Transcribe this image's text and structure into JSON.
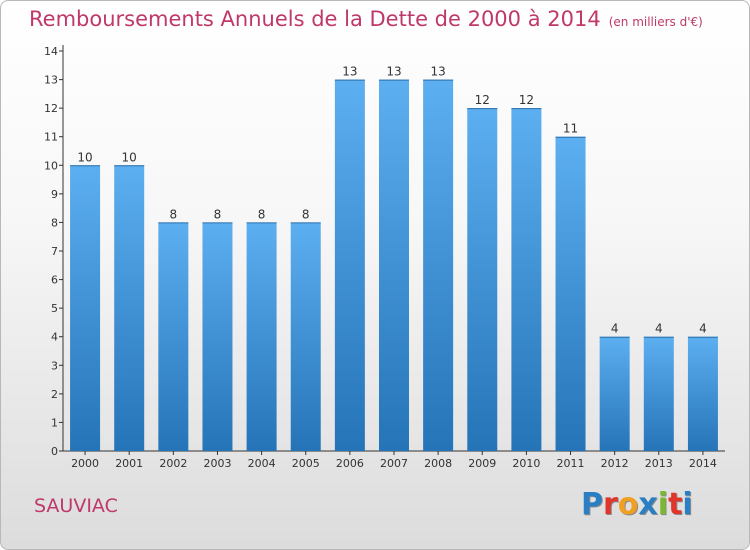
{
  "header": {
    "title": "Remboursements Annuels de la Dette de 2000 à 2014",
    "subtitle": "(en milliers d'€)"
  },
  "footer": {
    "commune": "SAUVIAC",
    "brand_letters": [
      "P",
      "r",
      "o",
      "x",
      "i",
      "t",
      "i"
    ],
    "brand_colors": [
      "#2a7fc4",
      "#e0352b",
      "#f0a020",
      "#2a7fc4",
      "#7cb82f",
      "#e0352b",
      "#2a7fc4"
    ]
  },
  "colors": {
    "title": "#c0386a",
    "bar_light": "#5aaee8",
    "bar_dark": "#2a78bd",
    "axis": "#333333"
  },
  "chart_data": {
    "type": "bar",
    "categories": [
      "2000",
      "2001",
      "2002",
      "2003",
      "2004",
      "2005",
      "2006",
      "2007",
      "2008",
      "2009",
      "2010",
      "2011",
      "2012",
      "2013",
      "2014"
    ],
    "values": [
      10,
      10,
      8,
      8,
      8,
      8,
      13,
      13,
      13,
      12,
      12,
      11,
      4,
      4,
      4
    ],
    "data_labels": [
      "10",
      "10",
      "8",
      "8",
      "8",
      "8",
      "13",
      "13",
      "13",
      "12",
      "12",
      "11",
      "4",
      "4",
      "4"
    ],
    "ylim": [
      0,
      14
    ],
    "y_ticks": [
      0,
      1,
      2,
      3,
      4,
      5,
      6,
      7,
      8,
      9,
      10,
      11,
      12,
      13,
      14
    ],
    "grid": false,
    "legend": "none"
  }
}
